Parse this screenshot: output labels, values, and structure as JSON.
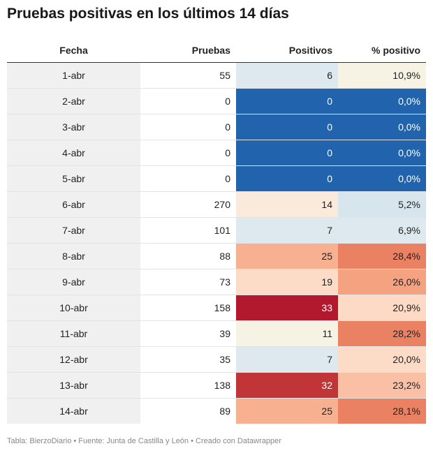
{
  "title": "Pruebas positivas en los últimos 14 días",
  "footer": "Tabla: BierzoDiario • Fuente: Junta de Castilla y León • Creado con Datawrapper",
  "chart_data": {
    "type": "table",
    "columns": [
      "Fecha",
      "Pruebas",
      "Positivos",
      "% positivo"
    ],
    "rows": [
      {
        "fecha": "1-abr",
        "pruebas": "55",
        "positivos": "6",
        "pct": "10,9%",
        "pos_color": "#dde9ee",
        "pct_color": "#f6f3e5"
      },
      {
        "fecha": "2-abr",
        "pruebas": "0",
        "positivos": "0",
        "pct": "0,0%",
        "pos_color": "#2164ad",
        "pct_color": "#2164ad"
      },
      {
        "fecha": "3-abr",
        "pruebas": "0",
        "positivos": "0",
        "pct": "0,0%",
        "pos_color": "#2164ad",
        "pct_color": "#2164ad"
      },
      {
        "fecha": "4-abr",
        "pruebas": "0",
        "positivos": "0",
        "pct": "0,0%",
        "pos_color": "#2164ad",
        "pct_color": "#2164ad"
      },
      {
        "fecha": "5-abr",
        "pruebas": "0",
        "positivos": "0",
        "pct": "0,0%",
        "pos_color": "#2164ad",
        "pct_color": "#2164ad"
      },
      {
        "fecha": "6-abr",
        "pruebas": "270",
        "positivos": "14",
        "pct": "5,2%",
        "pos_color": "#faeadb",
        "pct_color": "#d6e6ec"
      },
      {
        "fecha": "7-abr",
        "pruebas": "101",
        "positivos": "7",
        "pct": "6,9%",
        "pos_color": "#dde9ee",
        "pct_color": "#dde9ee"
      },
      {
        "fecha": "8-abr",
        "pruebas": "88",
        "positivos": "25",
        "pct": "28,4%",
        "pos_color": "#f7b090",
        "pct_color": "#e98162"
      },
      {
        "fecha": "9-abr",
        "pruebas": "73",
        "positivos": "19",
        "pct": "26,0%",
        "pos_color": "#fcdcc6",
        "pct_color": "#f4a280"
      },
      {
        "fecha": "10-abr",
        "pruebas": "158",
        "positivos": "33",
        "pct": "20,9%",
        "pos_color": "#b2192e",
        "pct_color": "#fcdac5"
      },
      {
        "fecha": "11-abr",
        "pruebas": "39",
        "positivos": "11",
        "pct": "28,2%",
        "pos_color": "#f6f3e5",
        "pct_color": "#e98162"
      },
      {
        "fecha": "12-abr",
        "pruebas": "35",
        "positivos": "7",
        "pct": "20,0%",
        "pos_color": "#dde9ee",
        "pct_color": "#fcdcc6"
      },
      {
        "fecha": "13-abr",
        "pruebas": "138",
        "positivos": "32",
        "pct": "23,2%",
        "pos_color": "#c13438",
        "pct_color": "#f9c0a6"
      },
      {
        "fecha": "14-abr",
        "pruebas": "89",
        "positivos": "25",
        "pct": "28,1%",
        "pos_color": "#f7b090",
        "pct_color": "#e98162"
      }
    ]
  }
}
